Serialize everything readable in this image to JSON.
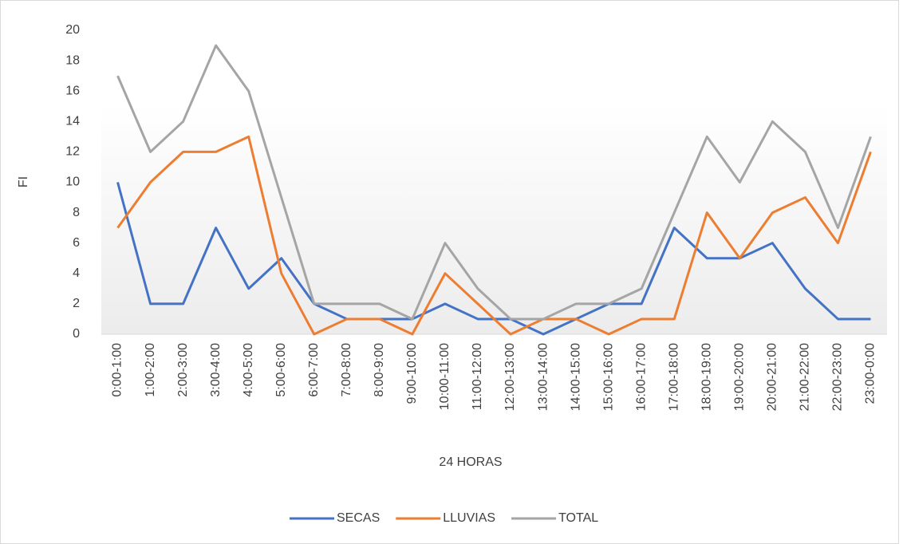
{
  "chart_data": {
    "type": "line",
    "categories": [
      "0:00-1:00",
      "1:00-2:00",
      "2:00-3:00",
      "3:00-4:00",
      "4:00-5:00",
      "5:00-6:00",
      "6:00-7:00",
      "7:00-8:00",
      "8:00-9:00",
      "9:00-10:00",
      "10:00-11:00",
      "11:00-12:00",
      "12:00-13:00",
      "13:00-14:00",
      "14:00-15:00",
      "15:00-16:00",
      "16:00-17:00",
      "17:00-18:00",
      "18:00-19:00",
      "19:00-20:00",
      "20:00-21:00",
      "21:00-22:00",
      "22:00-23:00",
      "23:00-0:00"
    ],
    "series": [
      {
        "name": "SECAS",
        "color": "#4472c4",
        "values": [
          10,
          2,
          2,
          7,
          3,
          5,
          2,
          1,
          1,
          1,
          2,
          1,
          1,
          0,
          1,
          2,
          2,
          7,
          5,
          5,
          6,
          3,
          1,
          1
        ]
      },
      {
        "name": "LLUVIAS",
        "color": "#ed7d31",
        "values": [
          7,
          10,
          12,
          12,
          13,
          4,
          0,
          1,
          1,
          0,
          4,
          2,
          0,
          1,
          1,
          0,
          1,
          1,
          8,
          5,
          8,
          9,
          6,
          12
        ]
      },
      {
        "name": "TOTAL",
        "color": "#a5a5a5",
        "values": [
          17,
          12,
          14,
          19,
          16,
          9,
          2,
          2,
          2,
          1,
          6,
          3,
          1,
          1,
          2,
          2,
          3,
          8,
          13,
          10,
          14,
          12,
          7,
          13
        ]
      }
    ],
    "xlabel": "24 HORAS",
    "ylabel": "FI",
    "ylim": [
      0,
      20
    ],
    "yticks": [
      0,
      2,
      4,
      6,
      8,
      10,
      12,
      14,
      16,
      18,
      20
    ],
    "legend": "bottom"
  }
}
